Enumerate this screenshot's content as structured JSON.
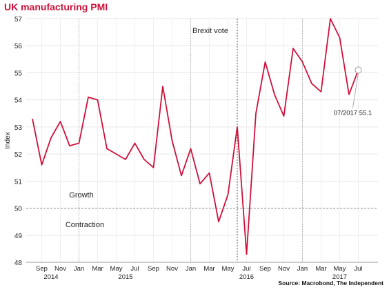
{
  "title": "UK manufacturing PMI",
  "source": "Source: Macrobond, The Independent",
  "colors": {
    "title": "#d0103a",
    "line": "#d0103a",
    "grid": "#e6e6e6"
  },
  "annotations": {
    "brexit": "Brexit vote",
    "growth": "Growth",
    "contraction": "Contraction",
    "callout": "07/2017 55.1"
  },
  "chart_data": {
    "type": "line",
    "title": "UK manufacturing PMI",
    "xlabel": "",
    "ylabel": "Index",
    "ylim": [
      48,
      57
    ],
    "yticks": [
      48,
      49,
      50,
      51,
      52,
      53,
      54,
      55,
      56,
      57
    ],
    "grid": true,
    "x": [
      "2014-08",
      "2014-09",
      "2014-10",
      "2014-11",
      "2014-12",
      "2015-01",
      "2015-02",
      "2015-03",
      "2015-04",
      "2015-05",
      "2015-06",
      "2015-07",
      "2015-08",
      "2015-09",
      "2015-10",
      "2015-11",
      "2015-12",
      "2016-01",
      "2016-02",
      "2016-03",
      "2016-04",
      "2016-05",
      "2016-06",
      "2016-07",
      "2016-08",
      "2016-09",
      "2016-10",
      "2016-11",
      "2016-12",
      "2017-01",
      "2017-02",
      "2017-03",
      "2017-04",
      "2017-05",
      "2017-06",
      "2017-07"
    ],
    "series": [
      {
        "values": [
          53.3,
          51.6,
          52.6,
          53.2,
          52.3,
          52.4,
          54.1,
          54.0,
          52.2,
          52.0,
          51.8,
          52.4,
          51.8,
          51.5,
          54.5,
          52.5,
          51.2,
          52.2,
          50.9,
          51.3,
          49.5,
          50.5,
          53.0,
          48.3,
          53.5,
          55.4,
          54.2,
          53.4,
          55.9,
          55.4,
          54.6,
          54.3,
          57.0,
          56.3,
          54.2,
          55.1
        ]
      }
    ],
    "x_tick_labels": [
      {
        "label": "Sep",
        "x": "2014-09"
      },
      {
        "label": "Nov",
        "x": "2014-11"
      },
      {
        "label": "Jan",
        "x": "2015-01"
      },
      {
        "label": "Mar",
        "x": "2015-03"
      },
      {
        "label": "May",
        "x": "2015-05"
      },
      {
        "label": "Jul",
        "x": "2015-07"
      },
      {
        "label": "Sep",
        "x": "2015-09"
      },
      {
        "label": "Nov",
        "x": "2015-11"
      },
      {
        "label": "Jan",
        "x": "2016-01"
      },
      {
        "label": "Mar",
        "x": "2016-03"
      },
      {
        "label": "May",
        "x": "2016-05"
      },
      {
        "label": "Jul",
        "x": "2016-07"
      },
      {
        "label": "Sep",
        "x": "2016-09"
      },
      {
        "label": "Nov",
        "x": "2016-11"
      },
      {
        "label": "Jan",
        "x": "2017-01"
      },
      {
        "label": "Mar",
        "x": "2017-03"
      },
      {
        "label": "May",
        "x": "2017-05"
      },
      {
        "label": "Jul",
        "x": "2017-07"
      }
    ],
    "year_labels": [
      {
        "label": "2014",
        "x": "2014-10"
      },
      {
        "label": "2015",
        "x": "2015-06"
      },
      {
        "label": "2016",
        "x": "2016-07"
      },
      {
        "label": "2017",
        "x": "2017-05"
      }
    ],
    "reference_lines": {
      "horizontal": {
        "y": 50,
        "style": "dashed"
      },
      "vertical_dotted": [
        "2015-01",
        "2016-01",
        "2017-01"
      ],
      "brexit_vote": "2016-06"
    },
    "highlight_point": {
      "x": "2017-07",
      "y": 55.1
    }
  }
}
